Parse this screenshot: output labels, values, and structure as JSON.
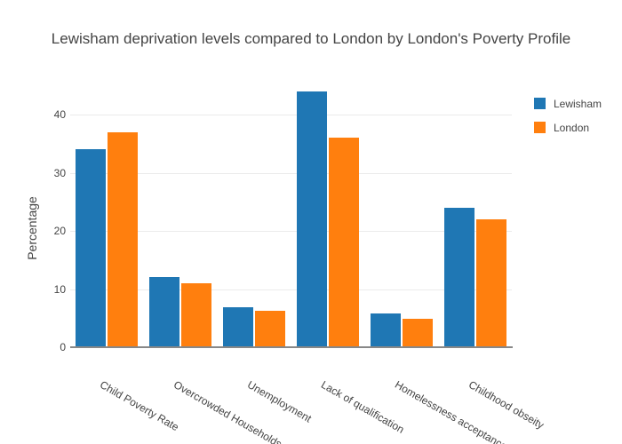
{
  "chart_data": {
    "type": "bar",
    "title": "Lewisham deprivation levels compared to London by London's Poverty Profile",
    "categories": [
      "Child Poverty Rate",
      "Overcrowded Households",
      "Unemployment",
      "Lack of qualification",
      "Homelessness acceptance",
      "Childhood obseity"
    ],
    "series": [
      {
        "name": "Lewisham",
        "color": "#1f77b4",
        "values": [
          34,
          12,
          6.8,
          44,
          5.8,
          24
        ]
      },
      {
        "name": "London",
        "color": "#ff7f0e",
        "values": [
          37,
          11,
          6.3,
          36,
          4.9,
          22
        ]
      }
    ],
    "xlabel": "",
    "ylabel": "Percentage",
    "yticks": [
      0,
      10,
      20,
      30,
      40
    ],
    "ylim": [
      0,
      46
    ],
    "grid": true,
    "legend_position": "top-right",
    "background_color": "#ffffff",
    "grid_color": "#ebebeb",
    "axis_line_color": "#888888",
    "text_color": "#444444",
    "xtick_angle_deg": 30
  }
}
